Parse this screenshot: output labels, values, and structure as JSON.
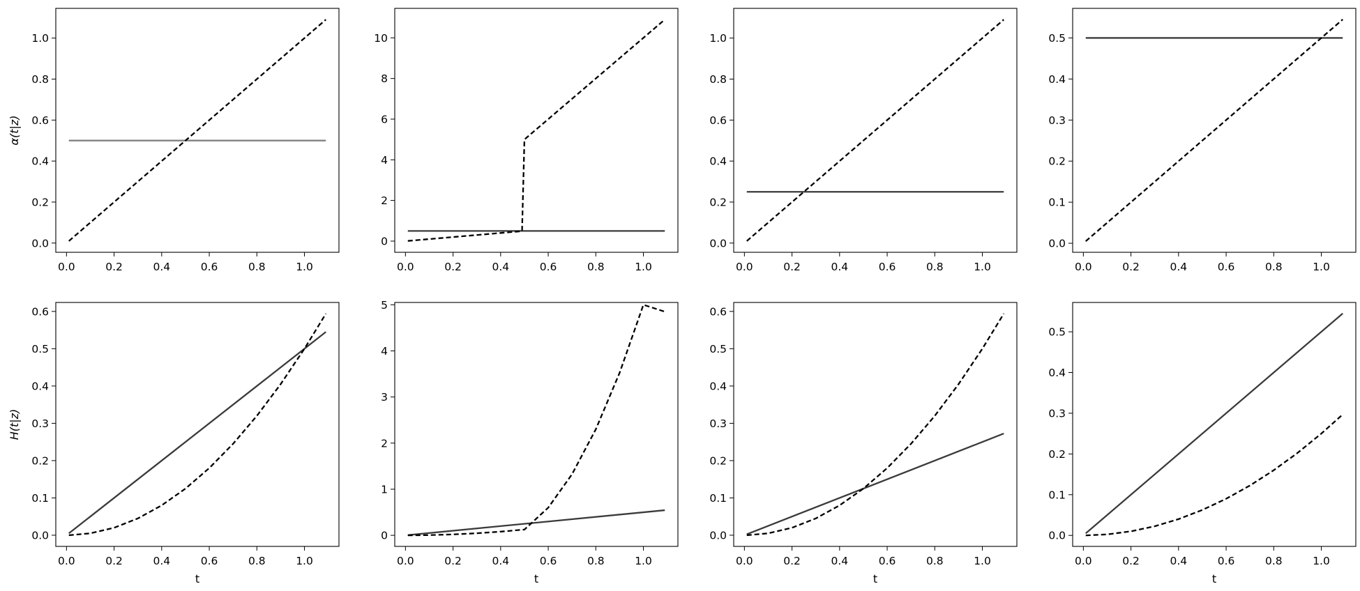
{
  "chart_data": [
    {
      "type": "line",
      "row": 0,
      "col": 0,
      "ylabel": "α(t|z)",
      "xlabel": "",
      "xlim": [
        -0.045,
        1.145
      ],
      "ylim": [
        -0.045,
        1.145
      ],
      "xticks": [
        0.0,
        0.2,
        0.4,
        0.6,
        0.8,
        1.0
      ],
      "xticklabels": [
        "0.0",
        "0.2",
        "0.4",
        "0.6",
        "0.8",
        "1.0"
      ],
      "yticks": [
        0.0,
        0.2,
        0.4,
        0.6,
        0.8,
        1.0
      ],
      "yticklabels": [
        "0.0",
        "0.2",
        "0.4",
        "0.6",
        "0.8",
        "1.0"
      ],
      "series": [
        {
          "style": "solid",
          "color": "#808080",
          "x": [
            0.01,
            1.09
          ],
          "y": [
            0.5,
            0.5
          ]
        },
        {
          "style": "dashed",
          "color": "#000000",
          "x": [
            0.01,
            1.09
          ],
          "y": [
            0.01,
            1.09
          ]
        }
      ]
    },
    {
      "type": "line",
      "row": 0,
      "col": 1,
      "ylabel": "",
      "xlabel": "",
      "xlim": [
        -0.045,
        1.145
      ],
      "ylim": [
        -0.55,
        11.45
      ],
      "xticks": [
        0.0,
        0.2,
        0.4,
        0.6,
        0.8,
        1.0
      ],
      "xticklabels": [
        "0.0",
        "0.2",
        "0.4",
        "0.6",
        "0.8",
        "1.0"
      ],
      "yticks": [
        0,
        2,
        4,
        6,
        8,
        10
      ],
      "yticklabels": [
        "0",
        "2",
        "4",
        "6",
        "8",
        "10"
      ],
      "series": [
        {
          "style": "solid",
          "color": "#3a3a3a",
          "x": [
            0.01,
            1.09
          ],
          "y": [
            0.5,
            0.5
          ]
        },
        {
          "style": "dashed",
          "color": "#000000",
          "x": [
            0.01,
            0.49,
            0.5,
            1.09
          ],
          "y": [
            0.01,
            0.49,
            5.0,
            10.9
          ]
        }
      ]
    },
    {
      "type": "line",
      "row": 0,
      "col": 2,
      "ylabel": "",
      "xlabel": "",
      "xlim": [
        -0.045,
        1.145
      ],
      "ylim": [
        -0.045,
        1.145
      ],
      "xticks": [
        0.0,
        0.2,
        0.4,
        0.6,
        0.8,
        1.0
      ],
      "xticklabels": [
        "0.0",
        "0.2",
        "0.4",
        "0.6",
        "0.8",
        "1.0"
      ],
      "yticks": [
        0.0,
        0.2,
        0.4,
        0.6,
        0.8,
        1.0
      ],
      "yticklabels": [
        "0.0",
        "0.2",
        "0.4",
        "0.6",
        "0.8",
        "1.0"
      ],
      "series": [
        {
          "style": "solid",
          "color": "#3a3a3a",
          "x": [
            0.01,
            1.09
          ],
          "y": [
            0.25,
            0.25
          ]
        },
        {
          "style": "dashed",
          "color": "#000000",
          "x": [
            0.01,
            1.09
          ],
          "y": [
            0.01,
            1.09
          ]
        }
      ]
    },
    {
      "type": "line",
      "row": 0,
      "col": 3,
      "ylabel": "",
      "xlabel": "",
      "xlim": [
        -0.045,
        1.145
      ],
      "ylim": [
        -0.022,
        0.572
      ],
      "xticks": [
        0.0,
        0.2,
        0.4,
        0.6,
        0.8,
        1.0
      ],
      "xticklabels": [
        "0.0",
        "0.2",
        "0.4",
        "0.6",
        "0.8",
        "1.0"
      ],
      "yticks": [
        0.0,
        0.1,
        0.2,
        0.3,
        0.4,
        0.5
      ],
      "yticklabels": [
        "0.0",
        "0.1",
        "0.2",
        "0.3",
        "0.4",
        "0.5"
      ],
      "series": [
        {
          "style": "solid",
          "color": "#3a3a3a",
          "x": [
            0.01,
            1.09
          ],
          "y": [
            0.5,
            0.5
          ]
        },
        {
          "style": "dashed",
          "color": "#000000",
          "x": [
            0.01,
            1.09
          ],
          "y": [
            0.005,
            0.545
          ]
        }
      ]
    },
    {
      "type": "line",
      "row": 1,
      "col": 0,
      "ylabel": "H(t|z)",
      "xlabel": "t",
      "xlim": [
        -0.045,
        1.145
      ],
      "ylim": [
        -0.03,
        0.624
      ],
      "xticks": [
        0.0,
        0.2,
        0.4,
        0.6,
        0.8,
        1.0
      ],
      "xticklabels": [
        "0.0",
        "0.2",
        "0.4",
        "0.6",
        "0.8",
        "1.0"
      ],
      "yticks": [
        0.0,
        0.1,
        0.2,
        0.3,
        0.4,
        0.5,
        0.6
      ],
      "yticklabels": [
        "0.0",
        "0.1",
        "0.2",
        "0.3",
        "0.4",
        "0.5",
        "0.6"
      ],
      "series": [
        {
          "style": "solid",
          "color": "#3a3a3a",
          "x": [
            0.01,
            1.09
          ],
          "y": [
            0.005,
            0.545
          ]
        },
        {
          "style": "dashed",
          "color": "#000000",
          "x": [
            0.01,
            0.1,
            0.2,
            0.3,
            0.4,
            0.5,
            0.6,
            0.7,
            0.8,
            0.9,
            1.0,
            1.09
          ],
          "y": [
            0.0,
            0.005,
            0.02,
            0.045,
            0.08,
            0.125,
            0.18,
            0.245,
            0.32,
            0.405,
            0.5,
            0.594
          ]
        }
      ]
    },
    {
      "type": "line",
      "row": 1,
      "col": 1,
      "ylabel": "",
      "xlabel": "t",
      "xlim": [
        -0.045,
        1.145
      ],
      "ylim": [
        -0.24,
        5.05
      ],
      "xticks": [
        0.0,
        0.2,
        0.4,
        0.6,
        0.8,
        1.0
      ],
      "xticklabels": [
        "0.0",
        "0.2",
        "0.4",
        "0.6",
        "0.8",
        "1.0"
      ],
      "yticks": [
        0,
        1,
        2,
        3,
        4,
        5
      ],
      "yticklabels": [
        "0",
        "1",
        "2",
        "3",
        "4",
        "5"
      ],
      "series": [
        {
          "style": "solid",
          "color": "#3a3a3a",
          "x": [
            0.01,
            1.09
          ],
          "y": [
            0.005,
            0.545
          ]
        },
        {
          "style": "dashed",
          "color": "#000000",
          "x": [
            0.01,
            0.1,
            0.2,
            0.3,
            0.4,
            0.5,
            0.6,
            0.7,
            0.8,
            0.9,
            1.0,
            1.09
          ],
          "y": [
            0.0,
            0.005,
            0.02,
            0.045,
            0.08,
            0.125,
            0.6,
            1.325,
            2.3,
            3.525,
            5.0,
            4.85
          ]
        }
      ]
    },
    {
      "type": "line",
      "row": 1,
      "col": 2,
      "ylabel": "",
      "xlabel": "t",
      "xlim": [
        -0.045,
        1.145
      ],
      "ylim": [
        -0.03,
        0.624
      ],
      "xticks": [
        0.0,
        0.2,
        0.4,
        0.6,
        0.8,
        1.0
      ],
      "xticklabels": [
        "0.0",
        "0.2",
        "0.4",
        "0.6",
        "0.8",
        "1.0"
      ],
      "yticks": [
        0.0,
        0.1,
        0.2,
        0.3,
        0.4,
        0.5,
        0.6
      ],
      "yticklabels": [
        "0.0",
        "0.1",
        "0.2",
        "0.3",
        "0.4",
        "0.5",
        "0.6"
      ],
      "series": [
        {
          "style": "solid",
          "color": "#3a3a3a",
          "x": [
            0.01,
            1.09
          ],
          "y": [
            0.0025,
            0.2725
          ]
        },
        {
          "style": "dashed",
          "color": "#000000",
          "x": [
            0.01,
            0.1,
            0.2,
            0.3,
            0.4,
            0.5,
            0.6,
            0.7,
            0.8,
            0.9,
            1.0,
            1.09
          ],
          "y": [
            0.0,
            0.005,
            0.02,
            0.045,
            0.08,
            0.125,
            0.18,
            0.245,
            0.32,
            0.405,
            0.5,
            0.594
          ]
        }
      ]
    },
    {
      "type": "line",
      "row": 1,
      "col": 3,
      "ylabel": "",
      "xlabel": "t",
      "xlim": [
        -0.045,
        1.145
      ],
      "ylim": [
        -0.027,
        0.572
      ],
      "xticks": [
        0.0,
        0.2,
        0.4,
        0.6,
        0.8,
        1.0
      ],
      "xticklabels": [
        "0.0",
        "0.2",
        "0.4",
        "0.6",
        "0.8",
        "1.0"
      ],
      "yticks": [
        0.0,
        0.1,
        0.2,
        0.3,
        0.4,
        0.5
      ],
      "yticklabels": [
        "0.0",
        "0.1",
        "0.2",
        "0.3",
        "0.4",
        "0.5"
      ],
      "series": [
        {
          "style": "solid",
          "color": "#3a3a3a",
          "x": [
            0.01,
            1.09
          ],
          "y": [
            0.005,
            0.545
          ]
        },
        {
          "style": "dashed",
          "color": "#000000",
          "x": [
            0.01,
            0.1,
            0.2,
            0.3,
            0.4,
            0.5,
            0.6,
            0.7,
            0.8,
            0.9,
            1.0,
            1.09
          ],
          "y": [
            0.0,
            0.0025,
            0.01,
            0.0225,
            0.04,
            0.0625,
            0.09,
            0.1225,
            0.16,
            0.2025,
            0.25,
            0.297
          ]
        }
      ]
    }
  ]
}
